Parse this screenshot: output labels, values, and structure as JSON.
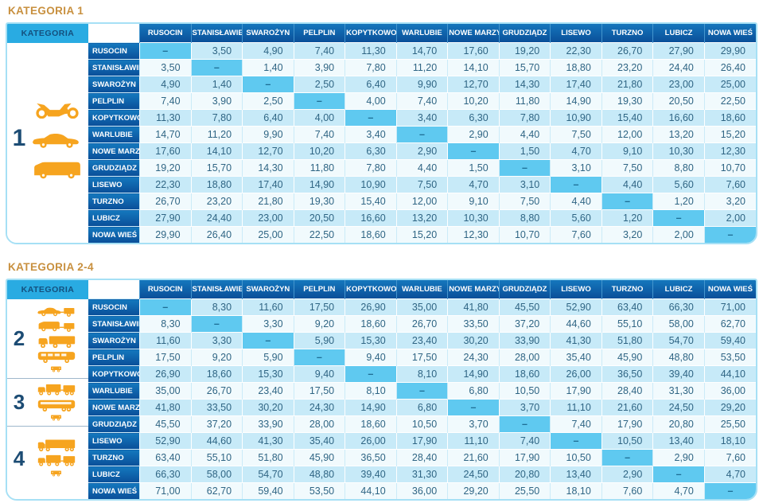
{
  "colors": {
    "title_orange": "#c8903f",
    "header_dark_blue": "#0a4f99",
    "kategoria_cyan": "#29abe2",
    "row_light_blue": "#c7eaf8",
    "row_white": "#f1fafd",
    "diagonal_cyan": "#5fc9f0",
    "price_text": "#2f6584",
    "icon_orange": "#f6a41f",
    "frame_border": "#a6e0f5"
  },
  "tables": [
    {
      "title": "KATEGORIA 1",
      "category_header_label": "KATEGORIA",
      "stations": [
        "RUSOCIN",
        "STANISŁAWIE",
        "SWAROŻYN",
        "PELPLIN",
        "KOPYTKOWO",
        "WARLUBIE",
        "NOWE MARZY",
        "GRUDZIĄDZ",
        "LISEWO",
        "TURZNO",
        "LUBICZ",
        "NOWA WIEŚ"
      ],
      "category_groups": [
        {
          "number": "1",
          "row_span": 12,
          "icons": [
            "motorcycle-icon",
            "car-icon",
            "van-icon"
          ]
        }
      ],
      "rows": [
        {
          "label": "RUSOCIN",
          "values": [
            "–",
            "3,50",
            "4,90",
            "7,40",
            "11,30",
            "14,70",
            "17,60",
            "19,20",
            "22,30",
            "26,70",
            "27,90",
            "29,90"
          ]
        },
        {
          "label": "STANISŁAWIE",
          "values": [
            "3,50",
            "–",
            "1,40",
            "3,90",
            "7,80",
            "11,20",
            "14,10",
            "15,70",
            "18,80",
            "23,20",
            "24,40",
            "26,40"
          ]
        },
        {
          "label": "SWAROŻYN",
          "values": [
            "4,90",
            "1,40",
            "–",
            "2,50",
            "6,40",
            "9,90",
            "12,70",
            "14,30",
            "17,40",
            "21,80",
            "23,00",
            "25,00"
          ]
        },
        {
          "label": "PELPLIN",
          "values": [
            "7,40",
            "3,90",
            "2,50",
            "–",
            "4,00",
            "7,40",
            "10,20",
            "11,80",
            "14,90",
            "19,30",
            "20,50",
            "22,50"
          ]
        },
        {
          "label": "KOPYTKOWO",
          "values": [
            "11,30",
            "7,80",
            "6,40",
            "4,00",
            "–",
            "3,40",
            "6,30",
            "7,80",
            "10,90",
            "15,40",
            "16,60",
            "18,60"
          ]
        },
        {
          "label": "WARLUBIE",
          "values": [
            "14,70",
            "11,20",
            "9,90",
            "7,40",
            "3,40",
            "–",
            "2,90",
            "4,40",
            "7,50",
            "12,00",
            "13,20",
            "15,20"
          ]
        },
        {
          "label": "NOWE MARZY",
          "values": [
            "17,60",
            "14,10",
            "12,70",
            "10,20",
            "6,30",
            "2,90",
            "–",
            "1,50",
            "4,70",
            "9,10",
            "10,30",
            "12,30"
          ]
        },
        {
          "label": "GRUDZIĄDZ",
          "values": [
            "19,20",
            "15,70",
            "14,30",
            "11,80",
            "7,80",
            "4,40",
            "1,50",
            "–",
            "3,10",
            "7,50",
            "8,80",
            "10,70"
          ]
        },
        {
          "label": "LISEWO",
          "values": [
            "22,30",
            "18,80",
            "17,40",
            "14,90",
            "10,90",
            "7,50",
            "4,70",
            "3,10",
            "–",
            "4,40",
            "5,60",
            "7,60"
          ]
        },
        {
          "label": "TURZNO",
          "values": [
            "26,70",
            "23,20",
            "21,80",
            "19,30",
            "15,40",
            "12,00",
            "9,10",
            "7,50",
            "4,40",
            "–",
            "1,20",
            "3,20"
          ]
        },
        {
          "label": "LUBICZ",
          "values": [
            "27,90",
            "24,40",
            "23,00",
            "20,50",
            "16,60",
            "13,20",
            "10,30",
            "8,80",
            "5,60",
            "1,20",
            "–",
            "2,00"
          ]
        },
        {
          "label": "NOWA WIEŚ",
          "values": [
            "29,90",
            "26,40",
            "25,00",
            "22,50",
            "18,60",
            "15,20",
            "12,30",
            "10,70",
            "7,60",
            "3,20",
            "2,00",
            "–"
          ]
        }
      ]
    },
    {
      "title": "KATEGORIA 2-4",
      "category_header_label": "KATEGORIA",
      "stations": [
        "RUSOCIN",
        "STANISŁAWIE",
        "SWAROŻYN",
        "PELPLIN",
        "KOPYTKOWO",
        "WARLUBIE",
        "NOWE MARZY",
        "GRUDZIĄDZ",
        "LISEWO",
        "TURZNO",
        "LUBICZ",
        "NOWA WIEŚ"
      ],
      "category_groups": [
        {
          "number": "2",
          "row_span": 5,
          "icons": [
            "car-with-trailer-icon",
            "van-with-trailer-icon",
            "truck-icon",
            "bus-icon",
            "small-trailer-icon"
          ]
        },
        {
          "number": "3",
          "row_span": 3,
          "icons": [
            "truck-with-trailer-icon",
            "coach-icon",
            "small-trailer-icon"
          ]
        },
        {
          "number": "4",
          "row_span": 4,
          "icons": [
            "semi-truck-icon",
            "truck-with-trailer-icon",
            "small-trailer-icon"
          ]
        }
      ],
      "rows": [
        {
          "label": "RUSOCIN",
          "values": [
            "–",
            "8,30",
            "11,60",
            "17,50",
            "26,90",
            "35,00",
            "41,80",
            "45,50",
            "52,90",
            "63,40",
            "66,30",
            "71,00"
          ]
        },
        {
          "label": "STANISŁAWIE",
          "values": [
            "8,30",
            "–",
            "3,30",
            "9,20",
            "18,60",
            "26,70",
            "33,50",
            "37,20",
            "44,60",
            "55,10",
            "58,00",
            "62,70"
          ]
        },
        {
          "label": "SWAROŻYN",
          "values": [
            "11,60",
            "3,30",
            "–",
            "5,90",
            "15,30",
            "23,40",
            "30,20",
            "33,90",
            "41,30",
            "51,80",
            "54,70",
            "59,40"
          ]
        },
        {
          "label": "PELPLIN",
          "values": [
            "17,50",
            "9,20",
            "5,90",
            "–",
            "9,40",
            "17,50",
            "24,30",
            "28,00",
            "35,40",
            "45,90",
            "48,80",
            "53,50"
          ]
        },
        {
          "label": "KOPYTKOWO",
          "values": [
            "26,90",
            "18,60",
            "15,30",
            "9,40",
            "–",
            "8,10",
            "14,90",
            "18,60",
            "26,00",
            "36,50",
            "39,40",
            "44,10"
          ]
        },
        {
          "label": "WARLUBIE",
          "values": [
            "35,00",
            "26,70",
            "23,40",
            "17,50",
            "8,10",
            "–",
            "6,80",
            "10,50",
            "17,90",
            "28,40",
            "31,30",
            "36,00"
          ]
        },
        {
          "label": "NOWE MARZY",
          "values": [
            "41,80",
            "33,50",
            "30,20",
            "24,30",
            "14,90",
            "6,80",
            "–",
            "3,70",
            "11,10",
            "21,60",
            "24,50",
            "29,20"
          ]
        },
        {
          "label": "GRUDZIĄDZ",
          "values": [
            "45,50",
            "37,20",
            "33,90",
            "28,00",
            "18,60",
            "10,50",
            "3,70",
            "–",
            "7,40",
            "17,90",
            "20,80",
            "25,50"
          ]
        },
        {
          "label": "LISEWO",
          "values": [
            "52,90",
            "44,60",
            "41,30",
            "35,40",
            "26,00",
            "17,90",
            "11,10",
            "7,40",
            "–",
            "10,50",
            "13,40",
            "18,10"
          ]
        },
        {
          "label": "TURZNO",
          "values": [
            "63,40",
            "55,10",
            "51,80",
            "45,90",
            "36,50",
            "28,40",
            "21,60",
            "17,90",
            "10,50",
            "–",
            "2,90",
            "7,60"
          ]
        },
        {
          "label": "LUBICZ",
          "values": [
            "66,30",
            "58,00",
            "54,70",
            "48,80",
            "39,40",
            "31,30",
            "24,50",
            "20,80",
            "13,40",
            "2,90",
            "–",
            "4,70"
          ]
        },
        {
          "label": "NOWA WIEŚ",
          "values": [
            "71,00",
            "62,70",
            "59,40",
            "53,50",
            "44,10",
            "36,00",
            "29,20",
            "25,50",
            "18,10",
            "7,60",
            "4,70",
            "–"
          ]
        }
      ]
    }
  ]
}
